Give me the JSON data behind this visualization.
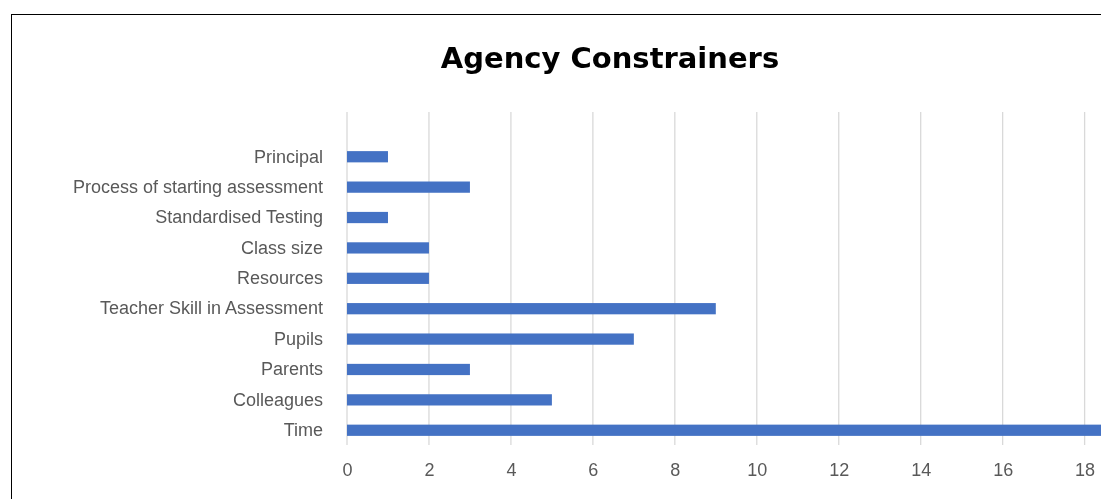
{
  "chart_data": {
    "type": "bar",
    "orientation": "horizontal",
    "title": "Agency Constrainers",
    "categories": [
      "Principal",
      "Process of starting assessment",
      "Standardised Testing",
      "Class size",
      "Resources",
      "Teacher Skill in Assessment",
      "Pupils",
      "Parents",
      "Colleagues",
      "Time"
    ],
    "values": [
      1,
      3,
      1,
      2,
      2,
      9,
      7,
      3,
      5,
      18.4
    ],
    "color": "#4472c4",
    "xlim": [
      0,
      18.4
    ],
    "xticks": [
      0,
      2,
      4,
      6,
      8,
      10,
      12,
      14,
      16,
      18
    ],
    "grid": "x"
  }
}
